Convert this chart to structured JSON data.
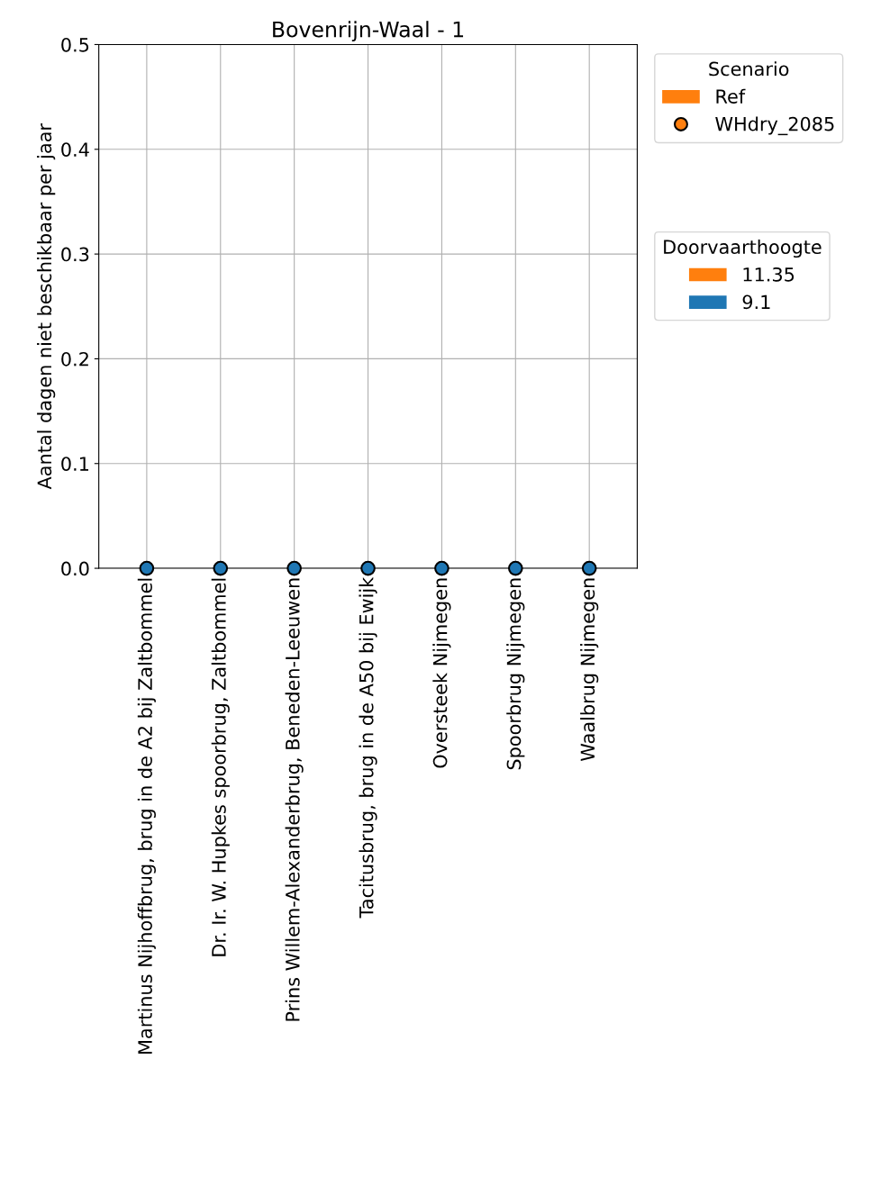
{
  "chart_data": {
    "type": "bar",
    "title": "Bovenrijn-Waal - 1",
    "ylabel": "Aantal dagen niet beschikbaar per jaar",
    "categories": [
      "Martinus Nijhoffbrug, brug in de A2 bij Zaltbommel",
      "Dr. Ir. W. Hupkes spoorbrug, Zaltbommel",
      "Prins Willem-Alexanderbrug, Beneden-Leeuwen",
      "Tacitusbrug, brug in de A50 bij Ewijk",
      "Oversteek Nijmegen",
      "Spoorbrug Nijmegen",
      "Waalbrug Nijmegen"
    ],
    "series": [
      {
        "name": "Ref",
        "color": "#ff7f0e",
        "values": [
          0,
          0,
          0,
          0,
          0,
          0,
          0
        ]
      },
      {
        "name": "WHdry_2085",
        "type": "scatter",
        "color": "#ff7f0e",
        "colors": [
          "#1f77b4",
          "#1f77b4",
          "#1f77b4",
          "#1f77b4",
          "#1f77b4",
          "#1f77b4",
          "#1f77b4"
        ],
        "values": [
          0,
          0,
          0,
          0,
          0,
          0,
          0
        ]
      },
      {
        "name": "11.35",
        "color": "#ff7f0e",
        "values": [
          0,
          0,
          0,
          0,
          0,
          0,
          0
        ]
      },
      {
        "name": "9.1",
        "color": "#1f77b4",
        "values": [
          0,
          0,
          0,
          0,
          0,
          0,
          0
        ]
      }
    ],
    "legend_title": [
      "Scenario",
      "Doorvaarthoogte"
    ],
    "ylim": [
      0,
      0.5
    ],
    "yticks": [
      {
        "value": 0,
        "label": "0.0"
      },
      0.1,
      0.2,
      0.3,
      0.4,
      0.5
    ],
    "grid": true,
    "legend": "top right",
    "marker": "circle"
  }
}
